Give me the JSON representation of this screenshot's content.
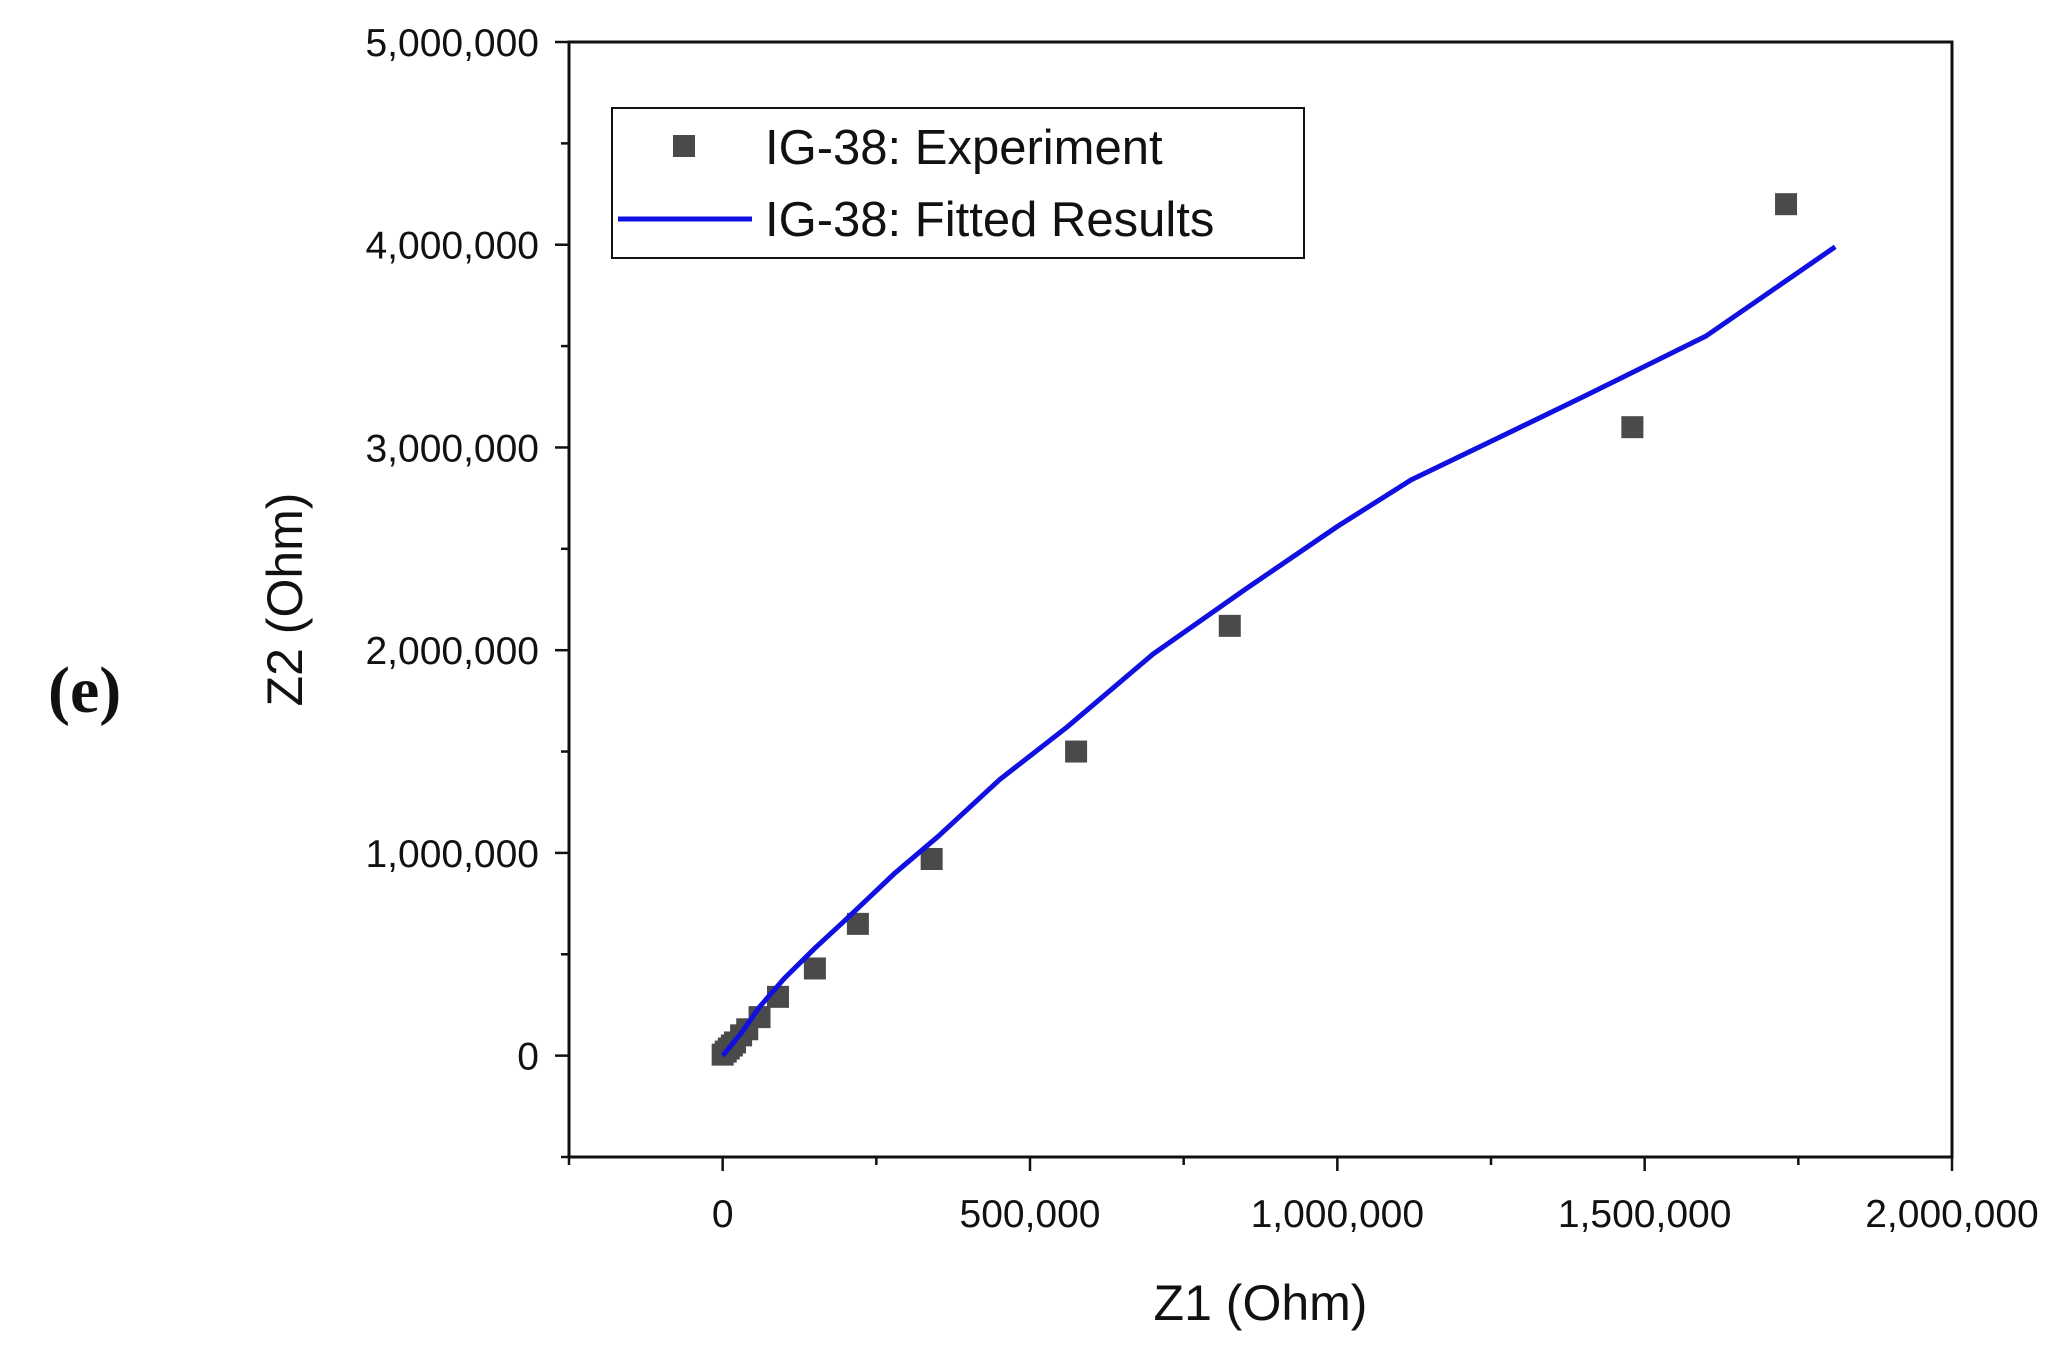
{
  "panel_label": "(e)",
  "chart_data": {
    "type": "scatter",
    "title": "",
    "xlabel": "Z1 (Ohm)",
    "ylabel": "Z2 (Ohm)",
    "xlim": [
      -250000,
      2000000
    ],
    "ylim": [
      -500000,
      5000000
    ],
    "xticks": [
      0,
      500000,
      1000000,
      1500000,
      2000000
    ],
    "xtick_labels": [
      "0",
      "500,000",
      "1,000,000",
      "1,500,000",
      "2,000,000"
    ],
    "yticks": [
      0,
      1000000,
      2000000,
      3000000,
      4000000,
      5000000
    ],
    "ytick_labels": [
      "0",
      "1,000,000",
      "2,000,000",
      "3,000,000",
      "4,000,000",
      "5,000,000"
    ],
    "grid": false,
    "legend_position": "top-left",
    "series": [
      {
        "name": "IG-38: Experiment",
        "kind": "markers",
        "marker": "square",
        "color": "#4a4a4a",
        "x": [
          0,
          5000,
          10000,
          15000,
          20000,
          30000,
          40000,
          60000,
          90000,
          150000,
          220000,
          340000,
          575000,
          825000,
          1480000,
          1730000
        ],
        "y": [
          5000,
          20000,
          35000,
          50000,
          65000,
          100000,
          130000,
          190000,
          290000,
          430000,
          650000,
          970000,
          1500000,
          2120000,
          3100000,
          4200000
        ]
      },
      {
        "name": "IG-38: Fitted Results",
        "kind": "line",
        "color": "#1010e0",
        "x": [
          0,
          30000,
          60000,
          100000,
          150000,
          200000,
          280000,
          350000,
          450000,
          560000,
          700000,
          850000,
          1000000,
          1120000,
          1250000,
          1400000,
          1600000,
          1810000
        ],
        "y": [
          0,
          110000,
          240000,
          380000,
          530000,
          670000,
          900000,
          1080000,
          1360000,
          1620000,
          1980000,
          2300000,
          2610000,
          2840000,
          3030000,
          3250000,
          3550000,
          3990000
        ]
      }
    ]
  }
}
